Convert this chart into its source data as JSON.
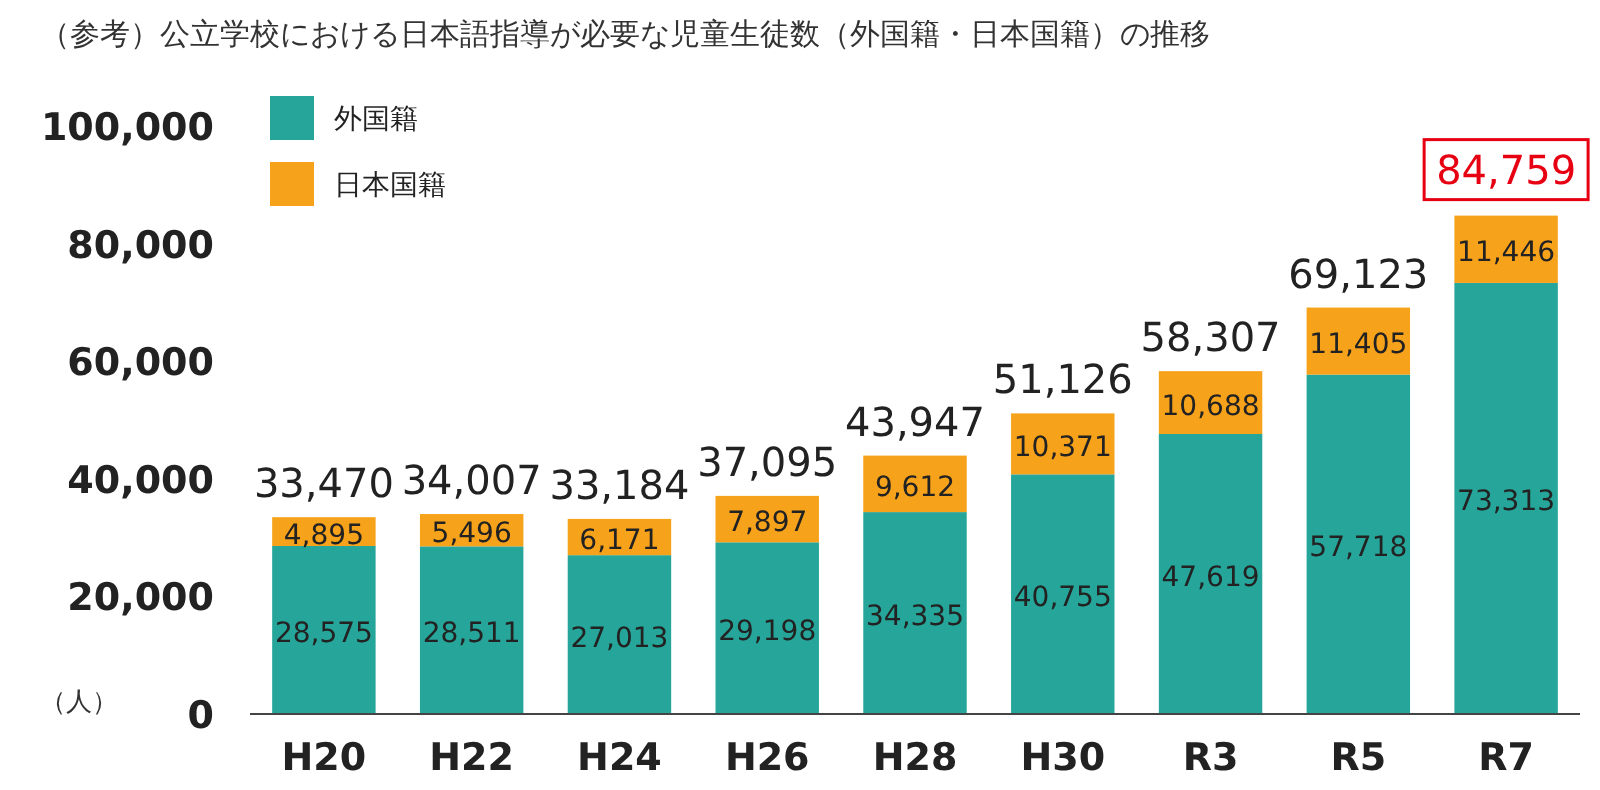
{
  "chart_data": {
    "type": "bar",
    "title": "（参考）公立学校における日本語指導が必要な児童生徒数（外国籍・日本国籍）の推移",
    "ylabel": "（人）",
    "categories": [
      "H20",
      "H22",
      "H24",
      "H26",
      "H28",
      "H30",
      "R3",
      "R5",
      "R7"
    ],
    "stacked": true,
    "legend": "top left",
    "series": [
      {
        "name": "外国籍",
        "color": "#26a69a",
        "values": [
          28575,
          28511,
          27013,
          29198,
          34335,
          40755,
          47619,
          57718,
          73313
        ],
        "value_labels": [
          "28,575",
          "28,511",
          "27,013",
          "29,198",
          "34,335",
          "40,755",
          "47,619",
          "57,718",
          "73,313"
        ]
      },
      {
        "name": "日本国籍",
        "color": "#f7a21b",
        "values": [
          4895,
          5496,
          6171,
          7897,
          9612,
          10371,
          10688,
          11405,
          11446
        ],
        "value_labels": [
          "4,895",
          "5,496",
          "6,171",
          "7,897",
          "9,612",
          "10,371",
          "10,688",
          "11,405",
          "11,446"
        ]
      }
    ],
    "totals": [
      "33,470",
      "34,007",
      "33,184",
      "37,095",
      "43,947",
      "51,126",
      "58,307",
      "69,123",
      "84,759"
    ],
    "ylim": [
      0,
      100000
    ],
    "yticks": [
      {
        "value": 0,
        "label": "0"
      },
      {
        "value": 20000,
        "label": "20,000"
      },
      {
        "value": 40000,
        "label": "40,000"
      },
      {
        "value": 60000,
        "label": "60,000"
      },
      {
        "value": 80000,
        "label": "80,000"
      },
      {
        "value": 100000,
        "label": "100,000"
      }
    ]
  }
}
